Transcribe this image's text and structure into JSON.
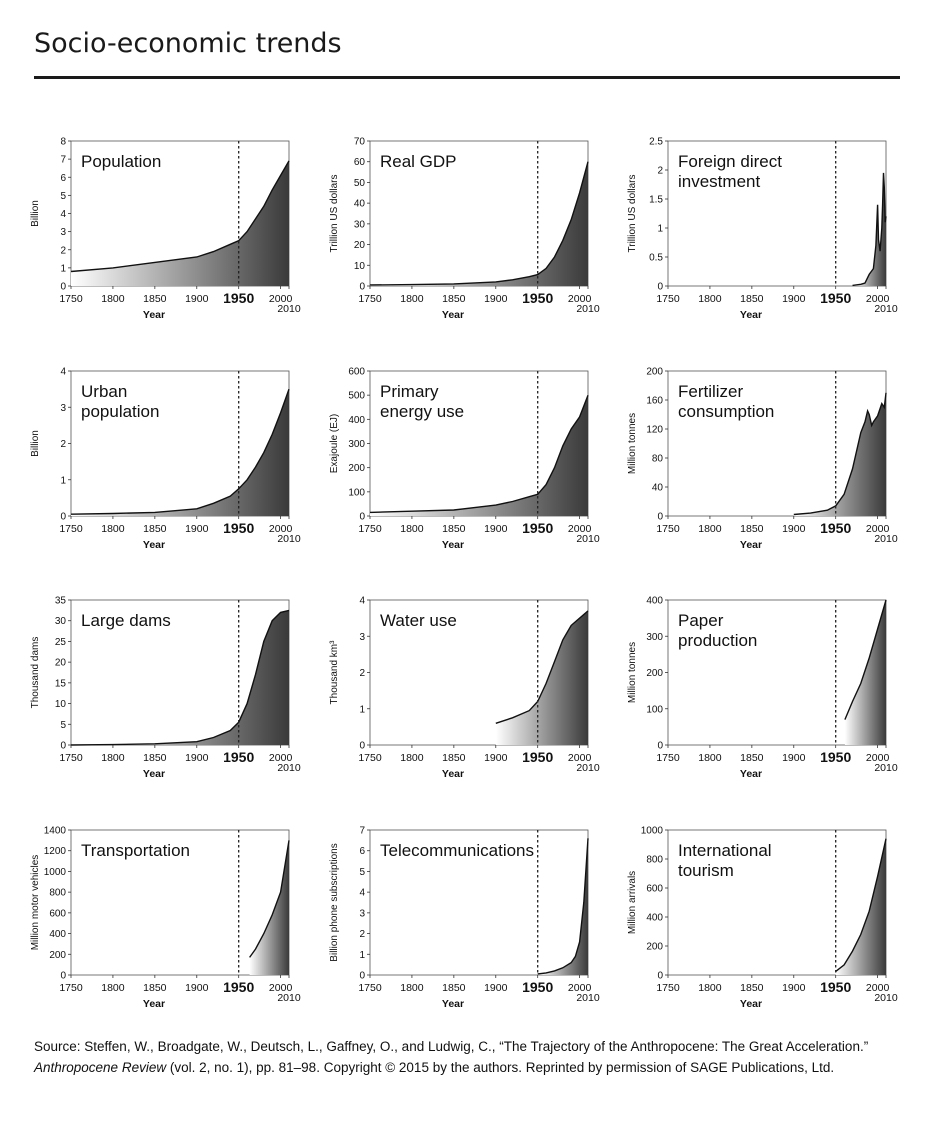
{
  "page": {
    "title": "Socio-economic trends",
    "source": {
      "line1": "Source: Steffen, W., Broadgate, W., Deutsch, L., Gaffney, O., and Ludwig, C., “The Trajectory of the Anthropocene: The Great Acceleration.”",
      "journal": "Anthropocene Review",
      "rest": " (vol. 2, no. 1), pp. 81–98. Copyright © 2015 by the authors. Reprinted by permission of SAGE Publications, Ltd."
    }
  },
  "colors": {
    "fill_dark": "#3a3a3a",
    "fill_light": "#ffffff",
    "line": "#111111",
    "marker_line": "#222222"
  },
  "chart_data": [
    {
      "type": "area",
      "id": "population",
      "title": [
        "Population"
      ],
      "ylabel": "Billion",
      "xlabel": "Year",
      "xlim": [
        1750,
        2010
      ],
      "ylim": [
        0,
        8
      ],
      "yticks": [
        0,
        1,
        2,
        3,
        4,
        5,
        6,
        7,
        8
      ],
      "xticks": [
        1750,
        1800,
        1850,
        1900,
        1950,
        2000,
        2010
      ],
      "marker_year": 1950,
      "x": [
        1750,
        1800,
        1850,
        1900,
        1920,
        1940,
        1950,
        1960,
        1970,
        1980,
        1990,
        2000,
        2010
      ],
      "y": [
        0.8,
        1.0,
        1.3,
        1.6,
        1.9,
        2.3,
        2.5,
        3.0,
        3.7,
        4.4,
        5.3,
        6.1,
        6.9
      ]
    },
    {
      "type": "area",
      "id": "real-gdp",
      "title": [
        "Real GDP"
      ],
      "ylabel": "Trillion US dollars",
      "xlabel": "Year",
      "xlim": [
        1750,
        2010
      ],
      "ylim": [
        0,
        70
      ],
      "yticks": [
        0,
        10,
        20,
        30,
        40,
        50,
        60,
        70
      ],
      "xticks": [
        1750,
        1800,
        1850,
        1900,
        1950,
        2000,
        2010
      ],
      "marker_year": 1950,
      "x": [
        1750,
        1800,
        1850,
        1900,
        1920,
        1940,
        1950,
        1960,
        1970,
        1980,
        1990,
        2000,
        2010
      ],
      "y": [
        0.5,
        0.7,
        1.0,
        2.0,
        3.0,
        4.5,
        5.5,
        8.5,
        14,
        22,
        32,
        45,
        60
      ]
    },
    {
      "type": "area",
      "id": "foreign-direct-investment",
      "title": [
        "Foreign direct",
        "investment"
      ],
      "ylabel": "Trillion US dollars",
      "xlabel": "Year",
      "xlim": [
        1750,
        2010
      ],
      "ylim": [
        0,
        2.5
      ],
      "yticks": [
        0,
        0.5,
        1,
        1.5,
        2,
        2.5
      ],
      "xticks": [
        1750,
        1800,
        1850,
        1900,
        1950,
        2000,
        2010
      ],
      "marker_year": 1950,
      "x": [
        1970,
        1980,
        1985,
        1990,
        1995,
        1998,
        2000,
        2001,
        2003,
        2005,
        2006,
        2007,
        2008,
        2009,
        2010
      ],
      "y": [
        0.01,
        0.03,
        0.05,
        0.2,
        0.3,
        0.7,
        1.4,
        0.8,
        0.6,
        1.0,
        1.4,
        1.95,
        1.7,
        1.1,
        1.2
      ]
    },
    {
      "type": "area",
      "id": "urban-population",
      "title": [
        "Urban",
        "population"
      ],
      "ylabel": "Billion",
      "xlabel": "Year",
      "xlim": [
        1750,
        2010
      ],
      "ylim": [
        0,
        4
      ],
      "yticks": [
        0,
        1,
        2,
        3,
        4
      ],
      "xticks": [
        1750,
        1800,
        1850,
        1900,
        1950,
        2000,
        2010
      ],
      "marker_year": 1950,
      "x": [
        1750,
        1800,
        1850,
        1900,
        1920,
        1940,
        1950,
        1960,
        1970,
        1980,
        1990,
        2000,
        2010
      ],
      "y": [
        0.05,
        0.07,
        0.1,
        0.2,
        0.35,
        0.55,
        0.75,
        1.0,
        1.35,
        1.75,
        2.25,
        2.85,
        3.5
      ]
    },
    {
      "type": "area",
      "id": "primary-energy-use",
      "title": [
        "Primary",
        "energy use"
      ],
      "ylabel": "Exajoule (EJ)",
      "xlabel": "Year",
      "xlim": [
        1750,
        2010
      ],
      "ylim": [
        0,
        600
      ],
      "yticks": [
        0,
        100,
        200,
        300,
        400,
        500,
        600
      ],
      "xticks": [
        1750,
        1800,
        1850,
        1900,
        1950,
        2000,
        2010
      ],
      "marker_year": 1950,
      "x": [
        1750,
        1800,
        1850,
        1900,
        1920,
        1940,
        1950,
        1960,
        1970,
        1980,
        1990,
        2000,
        2010
      ],
      "y": [
        15,
        20,
        25,
        45,
        60,
        80,
        90,
        130,
        200,
        290,
        360,
        410,
        500
      ]
    },
    {
      "type": "area",
      "id": "fertilizer-consumption",
      "title": [
        "Fertilizer",
        "consumption"
      ],
      "ylabel": "Million tonnes",
      "xlabel": "Year",
      "xlim": [
        1750,
        2010
      ],
      "ylim": [
        0,
        200
      ],
      "yticks": [
        0,
        40,
        80,
        120,
        160,
        200
      ],
      "xticks": [
        1750,
        1800,
        1850,
        1900,
        1950,
        2000,
        2010
      ],
      "marker_year": 1950,
      "x": [
        1900,
        1920,
        1940,
        1950,
        1960,
        1970,
        1980,
        1985,
        1988,
        1990,
        1993,
        1995,
        2000,
        2005,
        2008,
        2010
      ],
      "y": [
        2,
        4,
        8,
        14,
        30,
        65,
        115,
        130,
        145,
        140,
        125,
        130,
        138,
        155,
        150,
        170
      ]
    },
    {
      "type": "area",
      "id": "large-dams",
      "title": [
        "Large dams"
      ],
      "ylabel": "Thousand dams",
      "xlabel": "Year",
      "xlim": [
        1750,
        2010
      ],
      "ylim": [
        0,
        35
      ],
      "yticks": [
        0,
        5,
        10,
        15,
        20,
        25,
        30,
        35
      ],
      "xticks": [
        1750,
        1800,
        1850,
        1900,
        1950,
        2000,
        2010
      ],
      "marker_year": 1950,
      "x": [
        1750,
        1800,
        1850,
        1900,
        1920,
        1940,
        1950,
        1960,
        1970,
        1980,
        1990,
        2000,
        2010
      ],
      "y": [
        0,
        0.1,
        0.3,
        0.8,
        1.8,
        3.5,
        5.5,
        10,
        17,
        25,
        30,
        32,
        32.5
      ]
    },
    {
      "type": "area",
      "id": "water-use",
      "title": [
        "Water use"
      ],
      "ylabel": "Thousand km³",
      "xlabel": "Year",
      "xlim": [
        1750,
        2010
      ],
      "ylim": [
        0,
        4
      ],
      "yticks": [
        0,
        1,
        2,
        3,
        4
      ],
      "xticks": [
        1750,
        1800,
        1850,
        1900,
        1950,
        2000,
        2010
      ],
      "marker_year": 1950,
      "x": [
        1900,
        1920,
        1940,
        1950,
        1960,
        1970,
        1980,
        1990,
        2000,
        2010
      ],
      "y": [
        0.6,
        0.75,
        0.95,
        1.2,
        1.7,
        2.3,
        2.9,
        3.3,
        3.5,
        3.7
      ]
    },
    {
      "type": "area",
      "id": "paper-production",
      "title": [
        "Paper",
        "production"
      ],
      "ylabel": "Million tonnes",
      "xlabel": "Year",
      "xlim": [
        1750,
        2010
      ],
      "ylim": [
        0,
        400
      ],
      "yticks": [
        0,
        100,
        200,
        300,
        400
      ],
      "xticks": [
        1750,
        1800,
        1850,
        1900,
        1950,
        2000,
        2010
      ],
      "marker_year": 1950,
      "x": [
        1961,
        1970,
        1980,
        1990,
        2000,
        2010
      ],
      "y": [
        70,
        120,
        170,
        240,
        320,
        400
      ]
    },
    {
      "type": "area",
      "id": "transportation",
      "title": [
        "Transportation"
      ],
      "ylabel": "Million motor vehicles",
      "xlabel": "Year",
      "xlim": [
        1750,
        2010
      ],
      "ylim": [
        0,
        1400
      ],
      "yticks": [
        0,
        200,
        400,
        600,
        800,
        1000,
        1200,
        1400
      ],
      "xticks": [
        1750,
        1800,
        1850,
        1900,
        1950,
        2000,
        2010
      ],
      "marker_year": 1950,
      "x": [
        1963,
        1970,
        1980,
        1990,
        2000,
        2010
      ],
      "y": [
        170,
        250,
        400,
        580,
        800,
        1300
      ]
    },
    {
      "type": "area",
      "id": "telecommunications",
      "title": [
        "Telecommunications"
      ],
      "ylabel": "Billion phone subscriptions",
      "xlabel": "Year",
      "xlim": [
        1750,
        2010
      ],
      "ylim": [
        0,
        7
      ],
      "yticks": [
        0,
        1,
        2,
        3,
        4,
        5,
        6,
        7
      ],
      "xticks": [
        1750,
        1800,
        1850,
        1900,
        1950,
        2000,
        2010
      ],
      "marker_year": 1950,
      "x": [
        1950,
        1960,
        1970,
        1980,
        1990,
        1995,
        2000,
        2005,
        2010
      ],
      "y": [
        0.05,
        0.1,
        0.2,
        0.35,
        0.6,
        0.9,
        1.6,
        3.5,
        6.6
      ]
    },
    {
      "type": "area",
      "id": "international-tourism",
      "title": [
        "International",
        "tourism"
      ],
      "ylabel": "Million arrivals",
      "xlabel": "Year",
      "xlim": [
        1750,
        2010
      ],
      "ylim": [
        0,
        1000
      ],
      "yticks": [
        0,
        200,
        400,
        600,
        800,
        1000
      ],
      "xticks": [
        1750,
        1800,
        1850,
        1900,
        1950,
        2000,
        2010
      ],
      "marker_year": 1950,
      "x": [
        1950,
        1960,
        1970,
        1980,
        1990,
        2000,
        2010
      ],
      "y": [
        25,
        70,
        165,
        280,
        440,
        680,
        940
      ]
    }
  ]
}
